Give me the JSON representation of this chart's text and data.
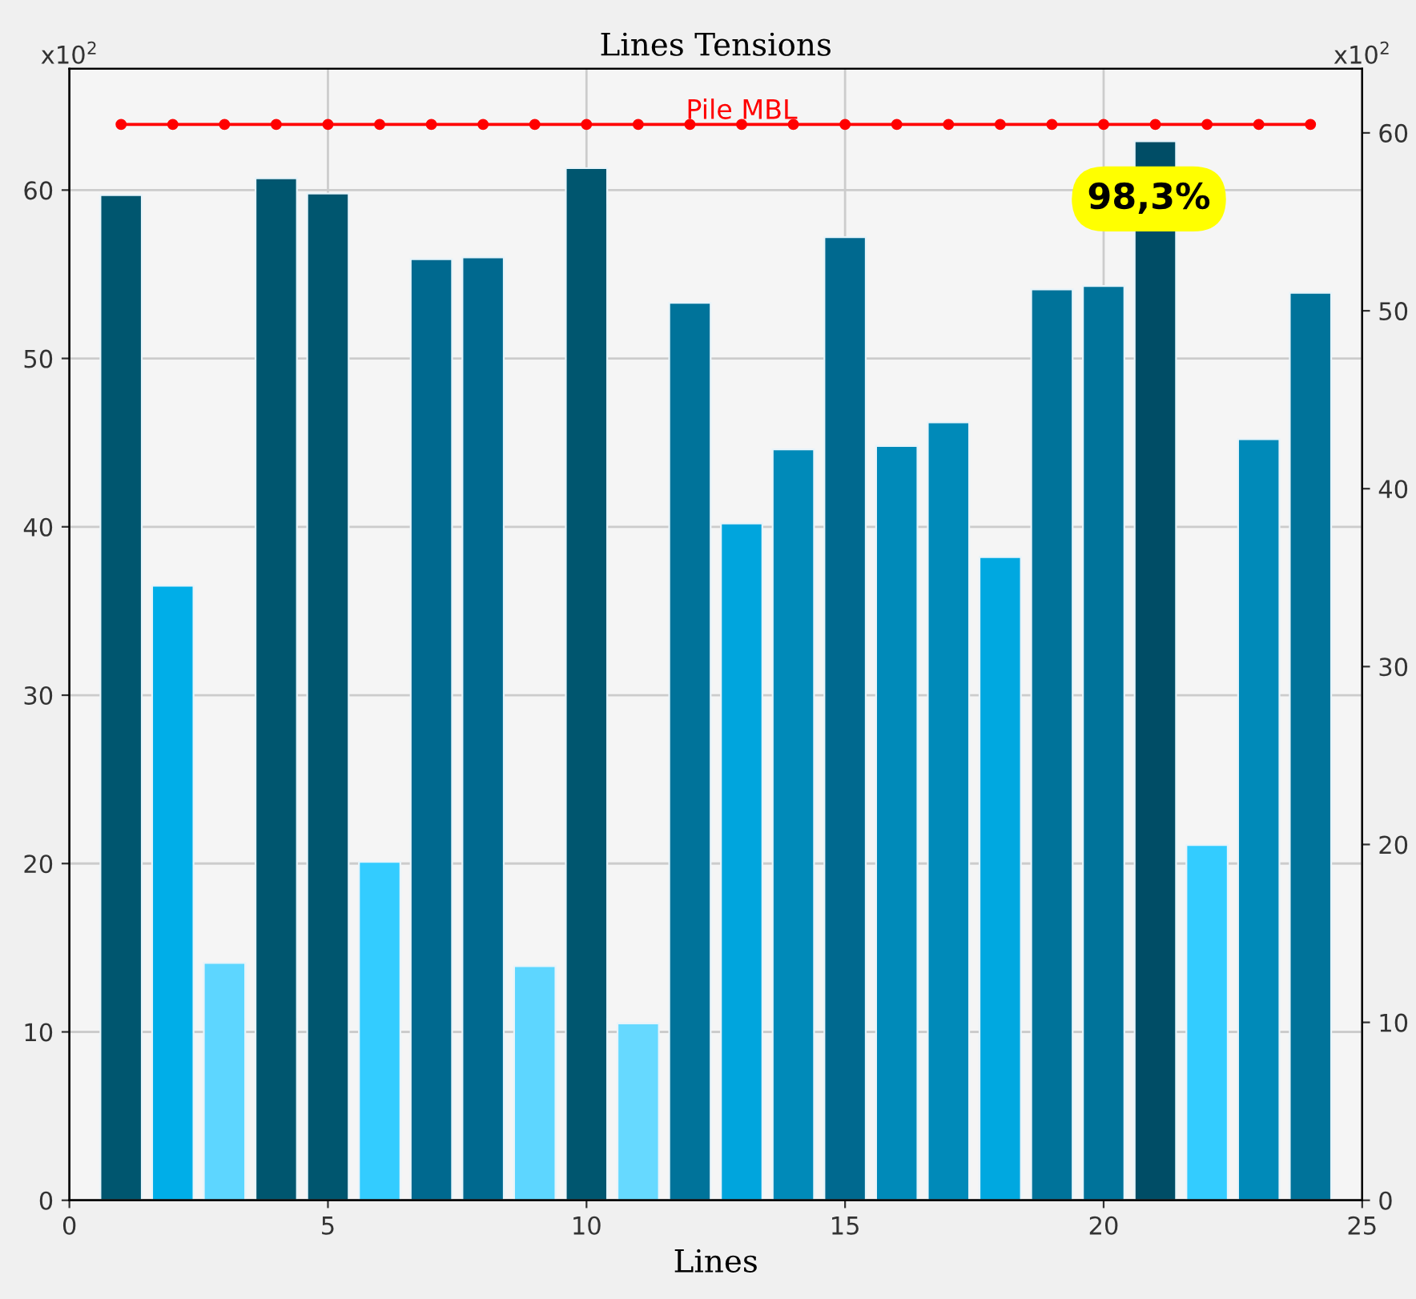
{
  "chart_data": {
    "type": "bar",
    "title": "Lines Tensions",
    "xlabel": "Lines",
    "xlim": [
      0,
      25
    ],
    "xticks": [
      0,
      5,
      10,
      15,
      20,
      25
    ],
    "ylim": [
      0,
      67.2
    ],
    "yticks": [
      0,
      10,
      20,
      30,
      40,
      50,
      60
    ],
    "y2lim": [
      0,
      63.6
    ],
    "y2ticks": [
      0,
      10,
      20,
      30,
      40,
      50,
      60
    ],
    "grid": true,
    "marker": "circle",
    "line_style": "solid",
    "series": [
      {
        "x": [
          1,
          2,
          3,
          4,
          5,
          6,
          7,
          8,
          9,
          10,
          11,
          12,
          13,
          14,
          15,
          16,
          17,
          18,
          19,
          20,
          21,
          22,
          23,
          24
        ],
        "values": [
          59.7,
          36.5,
          14.1,
          60.7,
          59.8,
          20.1,
          55.9,
          56.0,
          13.9,
          61.3,
          10.5,
          53.3,
          40.2,
          44.6,
          57.2,
          44.8,
          46.2,
          38.2,
          54.1,
          54.3,
          62.9,
          21.1,
          45.2,
          53.9
        ],
        "colors": [
          "#00566f",
          "#00aee8",
          "#5dd6ff",
          "#00566f",
          "#00566f",
          "#33ccff",
          "#00698f",
          "#00698f",
          "#5dd6ff",
          "#00566f",
          "#66d9ff",
          "#00739a",
          "#00a5dd",
          "#008ab9",
          "#00698f",
          "#008ab9",
          "#008ab9",
          "#00a8e0",
          "#00739a",
          "#00739a",
          "#004d66",
          "#33ccff",
          "#008ab9",
          "#00739a"
        ]
      },
      {
        "type": "line",
        "name": "Pile MBL",
        "color": "#ff0000",
        "x": [
          1,
          2,
          3,
          4,
          5,
          6,
          7,
          8,
          9,
          10,
          11,
          12,
          13,
          14,
          15,
          16,
          17,
          18,
          19,
          20,
          21,
          22,
          23,
          24
        ],
        "values": [
          63.9,
          63.9,
          63.9,
          63.9,
          63.9,
          63.9,
          63.9,
          63.9,
          63.9,
          63.9,
          63.9,
          63.9,
          63.9,
          63.9,
          63.9,
          63.9,
          63.9,
          63.9,
          63.9,
          63.9,
          63.9,
          63.9,
          63.9,
          63.9
        ]
      }
    ],
    "annotations": [
      "x10$^{2}$",
      "x10$^{2}$",
      "98,3%"
    ]
  }
}
